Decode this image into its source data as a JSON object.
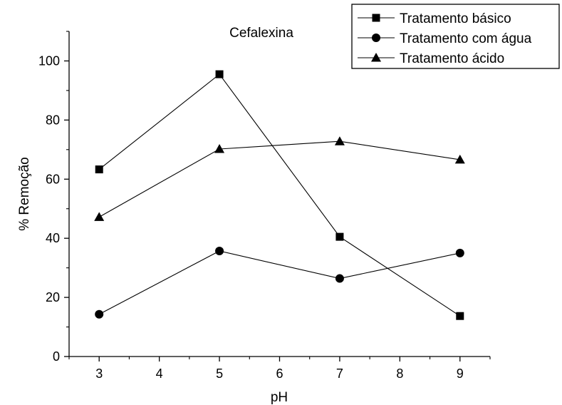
{
  "chart_data": {
    "type": "line",
    "title": "Cefalexina",
    "xlabel": "pH",
    "ylabel": "% Remoção",
    "xlim": [
      2.5,
      9.5
    ],
    "ylim": [
      0,
      110
    ],
    "xticks": [
      3,
      4,
      5,
      6,
      7,
      8,
      9
    ],
    "yticks": [
      0,
      20,
      40,
      60,
      80,
      100
    ],
    "grid": false,
    "legend_position": "top-right",
    "series": [
      {
        "name": "Tratamento básico",
        "marker": "square",
        "x": [
          3,
          5,
          7,
          9
        ],
        "y": [
          63.3,
          95.5,
          40.5,
          13.7
        ]
      },
      {
        "name": "Tratamento com água",
        "marker": "circle",
        "x": [
          3,
          5,
          7,
          9
        ],
        "y": [
          14.3,
          35.7,
          26.4,
          35.0
        ]
      },
      {
        "name": "Tratamento ácido",
        "marker": "triangle",
        "x": [
          3,
          5,
          7,
          9
        ],
        "y": [
          47.2,
          70.2,
          72.8,
          66.6
        ]
      }
    ]
  }
}
